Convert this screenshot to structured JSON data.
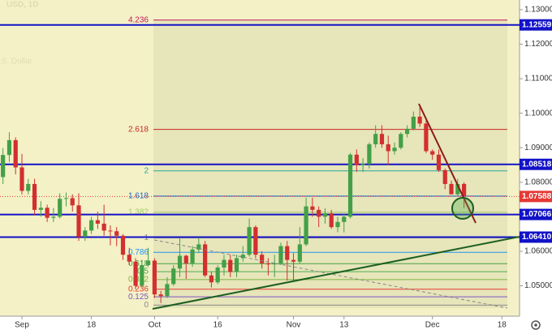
{
  "chart_data": {
    "type": "candlestick",
    "watermark": [
      "USD, 1D",
      "/ U.S. Dollar"
    ],
    "categories": [
      null,
      null,
      null,
      "Sep",
      null,
      null,
      null,
      null,
      null,
      null,
      null,
      null,
      null,
      null,
      "18",
      null,
      null,
      null,
      null,
      null,
      null,
      null,
      null,
      null,
      "Oct",
      null,
      null,
      null,
      null,
      null,
      null,
      null,
      null,
      null,
      "16",
      null,
      null,
      null,
      null,
      null,
      null,
      null,
      null,
      null,
      null,
      null,
      "Nov",
      null,
      null,
      null,
      null,
      null,
      null,
      null,
      "13",
      null,
      null,
      null,
      null,
      null,
      null,
      null,
      null,
      null,
      null,
      null,
      null,
      null,
      "Dec",
      null,
      null,
      null,
      null,
      null,
      null,
      null,
      null,
      null,
      null,
      "18",
      null,
      null
    ],
    "open": [
      1.0815,
      1.0879,
      1.0922,
      1.0843,
      1.0775,
      1.0795,
      1.072,
      1.0726,
      1.0697,
      1.07,
      1.0752,
      1.0754,
      1.0733,
      1.0642,
      1.066,
      1.069,
      1.068,
      1.066,
      1.0658,
      1.0645,
      1.059,
      1.057,
      1.05,
      1.056,
      1.0573,
      1.0475,
      1.047,
      1.0505,
      1.055,
      1.0587,
      1.0565,
      1.0605,
      1.062,
      1.053,
      1.051,
      1.0553,
      1.0575,
      1.054,
      1.058,
      1.059,
      1.067,
      1.059,
      1.0565,
      1.0562,
      1.0565,
      1.0615,
      1.0575,
      1.057,
      1.062,
      1.073,
      1.072,
      1.07,
      1.071,
      1.067,
      1.0685,
      1.07,
      1.088,
      1.085,
      1.0853,
      1.091,
      1.094,
      1.091,
      1.089,
      1.09,
      1.094,
      1.0955,
      1.099,
      1.097,
      1.089,
      1.088,
      1.0835,
      1.0795,
      1.0765,
      1.0795,
      null,
      null,
      null,
      null,
      null,
      null,
      null,
      null
    ],
    "high": [
      1.0899,
      1.0945,
      1.093,
      1.0882,
      1.081,
      1.081,
      1.0745,
      1.0735,
      1.0725,
      1.0768,
      1.077,
      1.0765,
      1.0768,
      1.067,
      1.07,
      1.0715,
      1.0735,
      1.0675,
      1.067,
      1.065,
      1.061,
      1.058,
      1.0575,
      1.061,
      1.058,
      1.0485,
      1.0525,
      1.056,
      1.064,
      1.059,
      1.0615,
      1.064,
      1.063,
      1.054,
      1.056,
      1.059,
      1.059,
      1.059,
      1.0615,
      1.0695,
      1.0675,
      1.06,
      1.058,
      1.059,
      1.0625,
      1.063,
      1.0595,
      1.067,
      1.0755,
      1.0755,
      1.073,
      1.0725,
      1.072,
      1.07,
      1.071,
      1.0885,
      1.0895,
      1.087,
      1.0915,
      1.0965,
      1.0965,
      1.0935,
      1.0915,
      1.0945,
      1.0965,
      1.1005,
      1.1017,
      1.0985,
      1.0895,
      1.0895,
      1.084,
      1.0805,
      1.081,
      1.08,
      null,
      null,
      null,
      null,
      null,
      null,
      null,
      null
    ],
    "low": [
      1.0795,
      1.0859,
      1.0823,
      1.0765,
      1.0765,
      1.0705,
      1.07,
      1.0685,
      1.0685,
      1.0695,
      1.073,
      1.0715,
      1.063,
      1.063,
      1.065,
      1.0665,
      1.0645,
      1.0617,
      1.0615,
      1.0575,
      1.056,
      1.049,
      1.0495,
      1.0555,
      1.0465,
      1.045,
      1.0465,
      1.05,
      1.0525,
      1.052,
      1.0555,
      1.0595,
      1.0525,
      1.0495,
      1.0505,
      1.053,
      1.0525,
      1.0525,
      1.057,
      1.0585,
      1.058,
      1.055,
      1.053,
      1.0525,
      1.056,
      1.0515,
      1.0515,
      1.0565,
      1.0615,
      1.07,
      1.067,
      1.068,
      1.0665,
      1.0655,
      1.0655,
      1.0695,
      1.083,
      1.083,
      1.084,
      1.09,
      1.09,
      1.085,
      1.088,
      1.0895,
      1.093,
      1.095,
      1.096,
      1.0885,
      1.0865,
      1.083,
      1.078,
      1.0765,
      1.076,
      1.0725,
      null,
      null,
      null,
      null,
      null,
      null,
      null,
      null
    ],
    "close": [
      1.0879,
      1.0922,
      1.0843,
      1.0775,
      1.0795,
      1.072,
      1.0726,
      1.0697,
      1.07,
      1.0752,
      1.0754,
      1.0733,
      1.0642,
      1.066,
      1.069,
      1.068,
      1.066,
      1.0658,
      1.0645,
      1.059,
      1.057,
      1.05,
      1.056,
      1.0573,
      1.0475,
      1.047,
      1.0505,
      1.055,
      1.0587,
      1.0565,
      1.0605,
      1.062,
      1.053,
      1.051,
      1.0553,
      1.0575,
      1.054,
      1.058,
      1.059,
      1.067,
      1.059,
      1.0565,
      1.0562,
      1.0565,
      1.0615,
      1.0575,
      1.057,
      1.062,
      1.073,
      1.072,
      1.07,
      1.071,
      1.067,
      1.0685,
      1.07,
      1.088,
      1.085,
      1.0853,
      1.091,
      1.094,
      1.091,
      1.089,
      1.09,
      1.094,
      1.0955,
      1.099,
      1.097,
      1.089,
      1.088,
      1.0835,
      1.0795,
      1.0765,
      1.0795,
      1.0759,
      null,
      null,
      null,
      null,
      null,
      null,
      null,
      null
    ],
    "up_color": "#43a047",
    "down_color": "#d32f2f",
    "ylim": [
      1.0412,
      1.1328
    ],
    "yticks": [
      {
        "value": 1.05,
        "label": "1.05000"
      },
      {
        "value": 1.06,
        "label": "1.06000"
      },
      {
        "value": 1.08,
        "label": "1.08000"
      },
      {
        "value": 1.09,
        "label": "1.09000"
      },
      {
        "value": 1.1,
        "label": "1.10000"
      },
      {
        "value": 1.11,
        "label": "1.11000"
      },
      {
        "value": 1.12,
        "label": "1.12000"
      },
      {
        "value": 1.13,
        "label": "1.13000"
      }
    ],
    "levels": [
      1.12559,
      1.08518,
      1.07066,
      {
        "value": 1.0641,
        "label": "1.06410"
      }
    ],
    "level_color": "#1212c8",
    "current_price": 1.07588,
    "current_color": "#e53935",
    "fib_levels": [
      {
        "label": "4.236",
        "value": 1.127,
        "color": "#c2185b"
      },
      {
        "label": "2.618",
        "value": 1.0953,
        "color": "#c62828"
      },
      {
        "label": "2",
        "value": 1.0833,
        "color": "#26a69a"
      },
      {
        "label": "1.618",
        "value": 1.076,
        "color": "#1e63c8"
      },
      {
        "label": "1.382",
        "value": 1.0713,
        "color": "#9ccc65"
      },
      {
        "label": "1",
        "value": 1.0639,
        "color": "#8a8a8a"
      },
      {
        "label": "0.786",
        "value": 1.0597,
        "color": "#2196f3"
      },
      {
        "label": "0.618",
        "value": 1.0564,
        "color": "#43a047"
      },
      {
        "label": "0.5",
        "value": 1.0541,
        "color": "#4caf50"
      },
      {
        "label": "0.382",
        "value": 1.0518,
        "color": "#7cb342"
      },
      {
        "label": "0.236",
        "value": 1.049,
        "color": "#e53935"
      },
      {
        "label": "0.125",
        "value": 1.0468,
        "color": "#7e57c2"
      },
      {
        "label": "0",
        "value": 1.0444,
        "color": "#8a8a8a"
      }
    ]
  }
}
